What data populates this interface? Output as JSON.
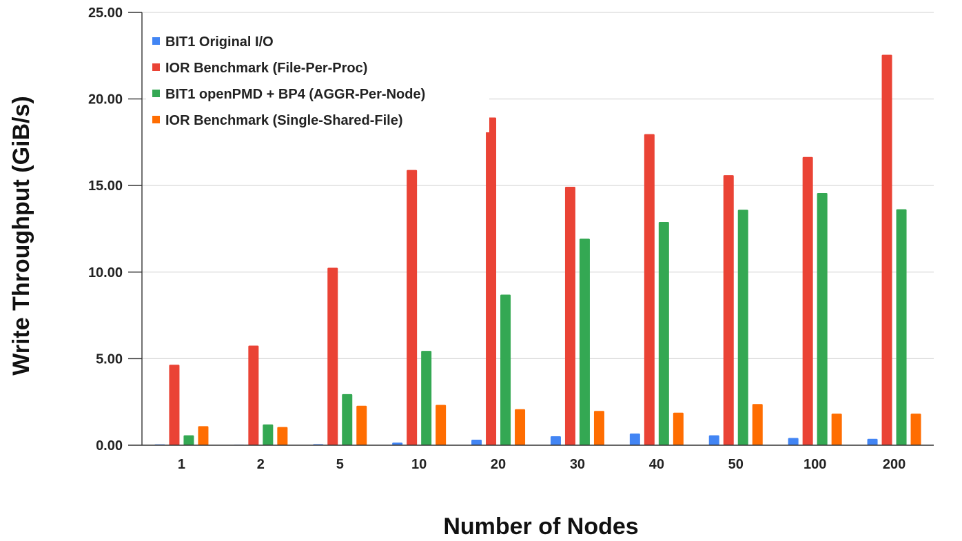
{
  "chart_data": {
    "type": "bar",
    "title": "",
    "xlabel": "Number of Nodes",
    "ylabel": "Write Throughput (GiB/s)",
    "categories": [
      "1",
      "2",
      "5",
      "10",
      "20",
      "30",
      "40",
      "50",
      "100",
      "200"
    ],
    "ylim": [
      0,
      25
    ],
    "yticks": [
      "0.00",
      "5.00",
      "10.00",
      "15.00",
      "20.00",
      "25.00"
    ],
    "grid": true,
    "legend_position": "top-left",
    "series": [
      {
        "name": "BIT1 Original I/O",
        "color": "#4285F4",
        "values": [
          0.05,
          0.03,
          0.06,
          0.15,
          0.32,
          0.52,
          0.67,
          0.57,
          0.42,
          0.37
        ]
      },
      {
        "name": "IOR Benchmark (File-Per-Proc)",
        "color": "#EA4335",
        "values": [
          4.65,
          5.75,
          10.25,
          15.9,
          18.93,
          14.93,
          17.97,
          15.6,
          16.65,
          22.55
        ]
      },
      {
        "name": "BIT1 openPMD + BP4 (AGGR-Per-Node)",
        "color": "#34A853",
        "values": [
          0.57,
          1.2,
          2.95,
          5.45,
          8.7,
          11.93,
          12.9,
          13.6,
          14.57,
          13.63
        ]
      },
      {
        "name": "IOR Benchmark (Single-Shared-File)",
        "color": "#FF6D01",
        "values": [
          1.1,
          1.05,
          2.28,
          2.33,
          2.08,
          1.98,
          1.88,
          2.38,
          1.82,
          1.82
        ]
      }
    ]
  }
}
